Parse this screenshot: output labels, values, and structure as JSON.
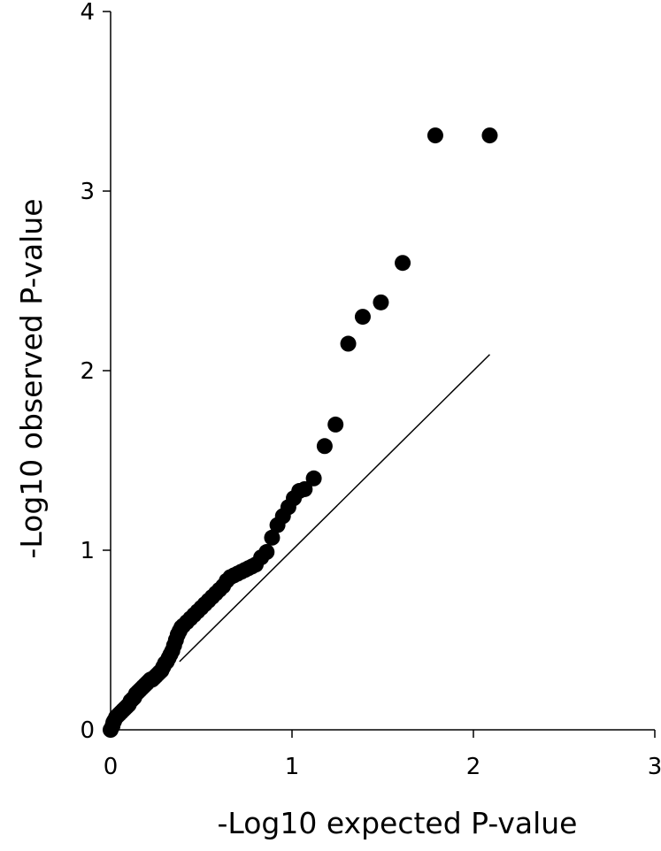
{
  "chart_data": {
    "type": "scatter",
    "title": "",
    "xlabel": "-Log10 expected P-value",
    "ylabel": "-Log10 observed P-value",
    "xlim": [
      0,
      3
    ],
    "ylim": [
      0,
      4
    ],
    "x_ticks": [
      "0",
      "1",
      "2",
      "3"
    ],
    "y_ticks": [
      "0",
      "1",
      "2",
      "3",
      "4"
    ],
    "grid": false,
    "legend": "none",
    "marker_color": "#000000",
    "series": [
      {
        "x": [
          0.0,
          0.01,
          0.015,
          0.02,
          0.03,
          0.04,
          0.05,
          0.06,
          0.07,
          0.08,
          0.09,
          0.1,
          0.11,
          0.12,
          0.13,
          0.14,
          0.15,
          0.16,
          0.17,
          0.18,
          0.19,
          0.2,
          0.21,
          0.22,
          0.23,
          0.24,
          0.25,
          0.26,
          0.27,
          0.28,
          0.29,
          0.3,
          0.31,
          0.32,
          0.33,
          0.34,
          0.35,
          0.36,
          0.37,
          0.38,
          0.39,
          0.4,
          0.42,
          0.44,
          0.46,
          0.48,
          0.5,
          0.52,
          0.54,
          0.56,
          0.58,
          0.6,
          0.62,
          0.64,
          0.66,
          0.68,
          0.7,
          0.72,
          0.74,
          0.76,
          0.78,
          0.8,
          0.83,
          0.86,
          0.89,
          0.92,
          0.95,
          0.98,
          1.01,
          1.04,
          1.07,
          1.12,
          1.18,
          1.24,
          1.31,
          1.39,
          1.49,
          1.61,
          1.79,
          2.09
        ],
        "y": [
          0.0,
          0.02,
          0.04,
          0.05,
          0.07,
          0.08,
          0.09,
          0.1,
          0.11,
          0.12,
          0.13,
          0.14,
          0.16,
          0.17,
          0.18,
          0.2,
          0.21,
          0.22,
          0.23,
          0.24,
          0.25,
          0.26,
          0.27,
          0.28,
          0.28,
          0.29,
          0.3,
          0.31,
          0.32,
          0.33,
          0.35,
          0.37,
          0.38,
          0.4,
          0.42,
          0.44,
          0.47,
          0.5,
          0.53,
          0.55,
          0.57,
          0.58,
          0.6,
          0.62,
          0.64,
          0.66,
          0.68,
          0.7,
          0.72,
          0.74,
          0.76,
          0.78,
          0.8,
          0.83,
          0.85,
          0.86,
          0.87,
          0.88,
          0.89,
          0.9,
          0.91,
          0.92,
          0.96,
          0.99,
          1.07,
          1.14,
          1.19,
          1.24,
          1.29,
          1.33,
          1.34,
          1.4,
          1.58,
          1.7,
          2.15,
          2.3,
          2.38,
          2.6,
          3.31,
          3.31
        ]
      },
      {
        "type": "line",
        "x": [
          0.38,
          2.09
        ],
        "y": [
          0.38,
          2.09
        ]
      }
    ]
  }
}
